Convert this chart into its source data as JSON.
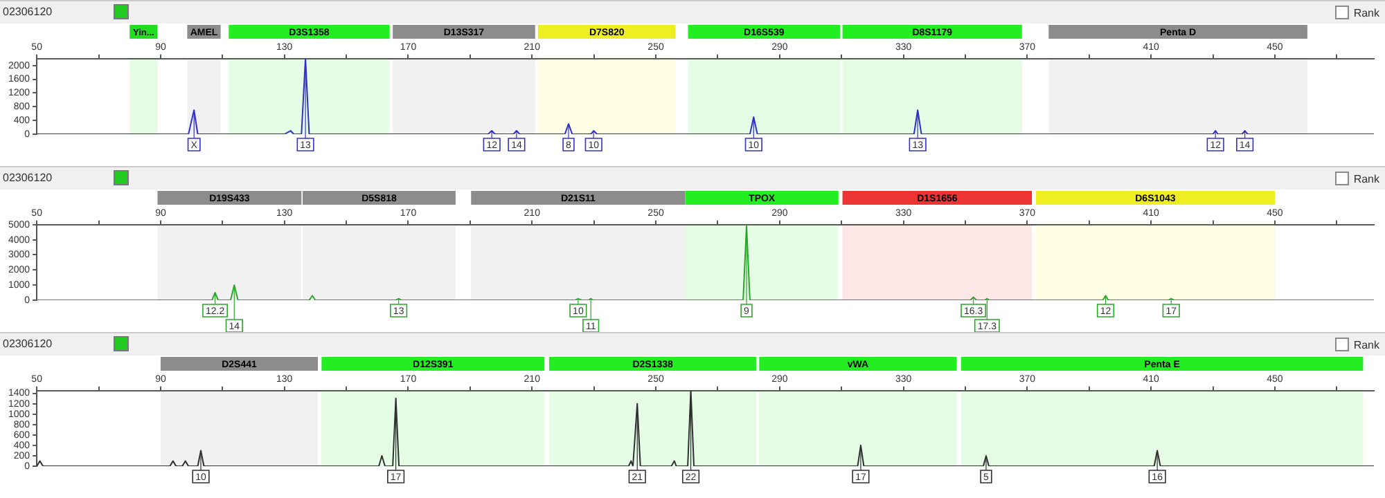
{
  "chart_data": [
    {
      "type": "line",
      "title": "02306120",
      "annotations": [
        "Rank",
        {
          "text": "X",
          "x": 100.8,
          "y": 700
        },
        {
          "text": "13",
          "x": 136.8,
          "y": 2200
        },
        {
          "text": "12",
          "x": 197,
          "y": 100
        },
        {
          "text": "14",
          "x": 205,
          "y": 100
        },
        {
          "text": "8",
          "x": 221.8,
          "y": 300
        },
        {
          "text": "10",
          "x": 229.9,
          "y": 100
        },
        {
          "text": "10",
          "x": 281.6,
          "y": 500
        },
        {
          "text": "13",
          "x": 334.6,
          "y": 700
        },
        {
          "text": "12",
          "x": 430.8,
          "y": 100
        },
        {
          "text": "14",
          "x": 440.3,
          "y": 100
        }
      ],
      "xlim": [
        50,
        482
      ],
      "xticks": [
        50,
        {
          "value": 70,
          "label": null
        },
        90,
        {
          "value": 110,
          "label": null
        },
        130,
        {
          "value": 150,
          "label": null
        },
        170,
        {
          "value": 190,
          "label": null
        },
        210,
        {
          "value": 230,
          "label": null
        },
        250,
        {
          "value": 270,
          "label": null
        },
        290,
        {
          "value": 310,
          "label": null
        },
        330,
        {
          "value": 350,
          "label": null
        },
        370,
        {
          "value": 390,
          "label": null
        },
        410,
        {
          "value": 430,
          "label": null
        },
        450,
        {
          "value": 470,
          "label": null
        }
      ],
      "ylim": [
        0,
        2200
      ],
      "yticks": [
        0,
        400,
        800,
        1200,
        1600,
        2000
      ],
      "bands": [
        {
          "axis": "x",
          "from": 80,
          "to": 89,
          "label": "Yin...",
          "color": "#22dd22"
        },
        {
          "axis": "x",
          "from": 98.6,
          "to": 109.4,
          "label": "AMEL",
          "color": "#8c8c8c"
        },
        {
          "axis": "x",
          "from": 112,
          "to": 164,
          "label": "D3S1358",
          "color": "#22ee22"
        },
        {
          "axis": "x",
          "from": 165,
          "to": 211,
          "label": "D13S317",
          "color": "#8c8c8c"
        },
        {
          "axis": "x",
          "from": 211.9,
          "to": 256.4,
          "label": "D7S820",
          "color": "#eeee22"
        },
        {
          "axis": "x",
          "from": 260.4,
          "to": 309.5,
          "label": "D16S539",
          "color": "#22ee22"
        },
        {
          "axis": "x",
          "from": 310.3,
          "to": 368.3,
          "label": "D8S1179",
          "color": "#22ee22"
        },
        {
          "axis": "x",
          "from": 376.9,
          "to": 460.5,
          "label": "Penta D",
          "color": "#8c8c8c"
        }
      ],
      "series": [
        {
          "color": "#3030c8",
          "x": [
            50,
            75,
            77,
            99,
            100,
            100.8,
            102,
            130,
            132,
            133,
            135.5,
            136.8,
            138,
            195.8,
            197,
            198,
            204,
            205,
            206,
            220.6,
            221.8,
            223,
            229,
            229.9,
            231,
            280.4,
            281.6,
            282.8,
            333.4,
            334.6,
            335.8,
            430,
            430.8,
            431.6,
            439.4,
            440.3,
            441.2,
            482
          ],
          "values": [
            0,
            0,
            0,
            0,
            400,
            700,
            0,
            0,
            100,
            0,
            0,
            2200,
            0,
            0,
            100,
            0,
            0,
            100,
            0,
            0,
            300,
            0,
            0,
            100,
            0,
            0,
            500,
            0,
            0,
            700,
            0,
            0,
            100,
            0,
            0,
            100,
            0,
            0
          ]
        }
      ]
    },
    {
      "type": "line",
      "title": "02306120",
      "annotations": [
        "Rank",
        {
          "text": "12.2",
          "x": 107.6,
          "y": 500
        },
        {
          "text": "14",
          "x": 113.8,
          "y": 1000
        },
        {
          "text": "13",
          "x": 166.9,
          "y": 100
        },
        {
          "text": "10",
          "x": 224.9,
          "y": 100
        },
        {
          "text": "11",
          "x": 229,
          "y": 100
        },
        {
          "text": "9",
          "x": 279.3,
          "y": 4900
        },
        {
          "text": "16.3",
          "x": 352.6,
          "y": 200
        },
        {
          "text": "17.3",
          "x": 357,
          "y": 100
        },
        {
          "text": "12",
          "x": 395.3,
          "y": 300
        },
        {
          "text": "17",
          "x": 416.5,
          "y": 100
        }
      ],
      "xlim": [
        50,
        482
      ],
      "xticks": [
        50,
        {
          "value": 70,
          "label": null
        },
        90,
        {
          "value": 110,
          "label": null
        },
        130,
        {
          "value": 150,
          "label": null
        },
        170,
        {
          "value": 190,
          "label": null
        },
        210,
        {
          "value": 230,
          "label": null
        },
        250,
        {
          "value": 270,
          "label": null
        },
        290,
        {
          "value": 310,
          "label": null
        },
        330,
        {
          "value": 350,
          "label": null
        },
        370,
        {
          "value": 390,
          "label": null
        },
        410,
        {
          "value": 430,
          "label": null
        },
        450,
        {
          "value": 470,
          "label": null
        }
      ],
      "ylim": [
        0,
        5000
      ],
      "yticks": [
        0,
        1000,
        2000,
        3000,
        4000,
        5000
      ],
      "bands": [
        {
          "axis": "x",
          "from": 89,
          "to": 135.5,
          "label": "D19S433",
          "color": "#8c8c8c"
        },
        {
          "axis": "x",
          "from": 135.9,
          "to": 185.3,
          "label": "D5S818",
          "color": "#8c8c8c"
        },
        {
          "axis": "x",
          "from": 190.3,
          "to": 259.5,
          "label": "D21S11",
          "color": "#8c8c8c"
        },
        {
          "axis": "x",
          "from": 259.5,
          "to": 309,
          "label": "TPOX",
          "color": "#22ee22"
        },
        {
          "axis": "x",
          "from": 310.3,
          "to": 371.5,
          "label": "D1S1656",
          "color": "#ee3333"
        },
        {
          "axis": "x",
          "from": 372.8,
          "to": 450,
          "label": "D6S1043",
          "color": "#eeee22"
        }
      ],
      "series": [
        {
          "color": "#28a828",
          "x": [
            50,
            106.6,
            107.6,
            108.6,
            112.6,
            113.8,
            115,
            138,
            139,
            140,
            166,
            166.9,
            167.8,
            224,
            224.9,
            226,
            228.2,
            229,
            229.8,
            278.2,
            279.3,
            280.4,
            351.6,
            352.6,
            353.6,
            356.2,
            357,
            357.8,
            394.4,
            395.3,
            396.2,
            415.6,
            416.5,
            417.4,
            482
          ],
          "values": [
            0,
            0,
            500,
            0,
            0,
            1000,
            0,
            0,
            300,
            0,
            0,
            100,
            0,
            0,
            100,
            0,
            0,
            100,
            0,
            0,
            4900,
            0,
            0,
            200,
            0,
            0,
            100,
            0,
            0,
            300,
            0,
            0,
            100,
            0,
            0
          ]
        }
      ]
    },
    {
      "type": "line",
      "title": "02306120",
      "annotations": [
        "Rank",
        {
          "text": "10",
          "x": 103,
          "y": 300
        },
        {
          "text": "17",
          "x": 166,
          "y": 1300
        },
        {
          "text": "21",
          "x": 244,
          "y": 1200
        },
        {
          "text": "22",
          "x": 261.3,
          "y": 1450
        },
        {
          "text": "17",
          "x": 316.2,
          "y": 400
        },
        {
          "text": "5",
          "x": 356.7,
          "y": 200
        },
        {
          "text": "16",
          "x": 412,
          "y": 300
        }
      ],
      "xlim": [
        50,
        482
      ],
      "xticks": [
        50,
        {
          "value": 70,
          "label": null
        },
        90,
        {
          "value": 110,
          "label": null
        },
        130,
        {
          "value": 150,
          "label": null
        },
        170,
        {
          "value": 190,
          "label": null
        },
        210,
        {
          "value": 230,
          "label": null
        },
        250,
        {
          "value": 270,
          "label": null
        },
        290,
        {
          "value": 310,
          "label": null
        },
        330,
        {
          "value": 350,
          "label": null
        },
        370,
        {
          "value": 390,
          "label": null
        },
        410,
        {
          "value": 430,
          "label": null
        },
        450,
        {
          "value": 470,
          "label": null
        }
      ],
      "ylim": [
        0,
        1450
      ],
      "yticks": [
        0,
        200,
        400,
        600,
        800,
        1000,
        1200,
        1400
      ],
      "bands": [
        {
          "axis": "x",
          "from": 90,
          "to": 140.8,
          "label": "D2S441",
          "color": "#8c8c8c"
        },
        {
          "axis": "x",
          "from": 142,
          "to": 214,
          "label": "D12S391",
          "color": "#22ee22"
        },
        {
          "axis": "x",
          "from": 215.5,
          "to": 282.5,
          "label": "D2S1338",
          "color": "#22ee22"
        },
        {
          "axis": "x",
          "from": 283.4,
          "to": 347.2,
          "label": "vWA",
          "color": "#22ee22"
        },
        {
          "axis": "x",
          "from": 348.6,
          "to": 478.5,
          "label": "Penta E",
          "color": "#22ee22"
        }
      ],
      "series": [
        {
          "color": "#303030",
          "x": [
            50,
            51,
            52,
            93,
            94,
            95,
            97,
            98,
            99,
            102,
            103,
            104,
            160.5,
            161.5,
            162.5,
            165,
            166,
            167,
            241.2,
            242,
            242.6,
            244,
            245,
            255,
            256,
            256.6,
            260.3,
            261.3,
            262.3,
            315.2,
            316.2,
            317.2,
            355.8,
            356.7,
            357.6,
            411,
            412,
            413,
            482
          ],
          "values": [
            0,
            100,
            0,
            0,
            100,
            0,
            0,
            100,
            0,
            0,
            300,
            0,
            0,
            200,
            0,
            0,
            1300,
            0,
            0,
            100,
            0,
            1200,
            0,
            0,
            100,
            0,
            0,
            1450,
            0,
            0,
            400,
            0,
            0,
            200,
            0,
            0,
            300,
            0,
            0
          ]
        }
      ]
    }
  ]
}
